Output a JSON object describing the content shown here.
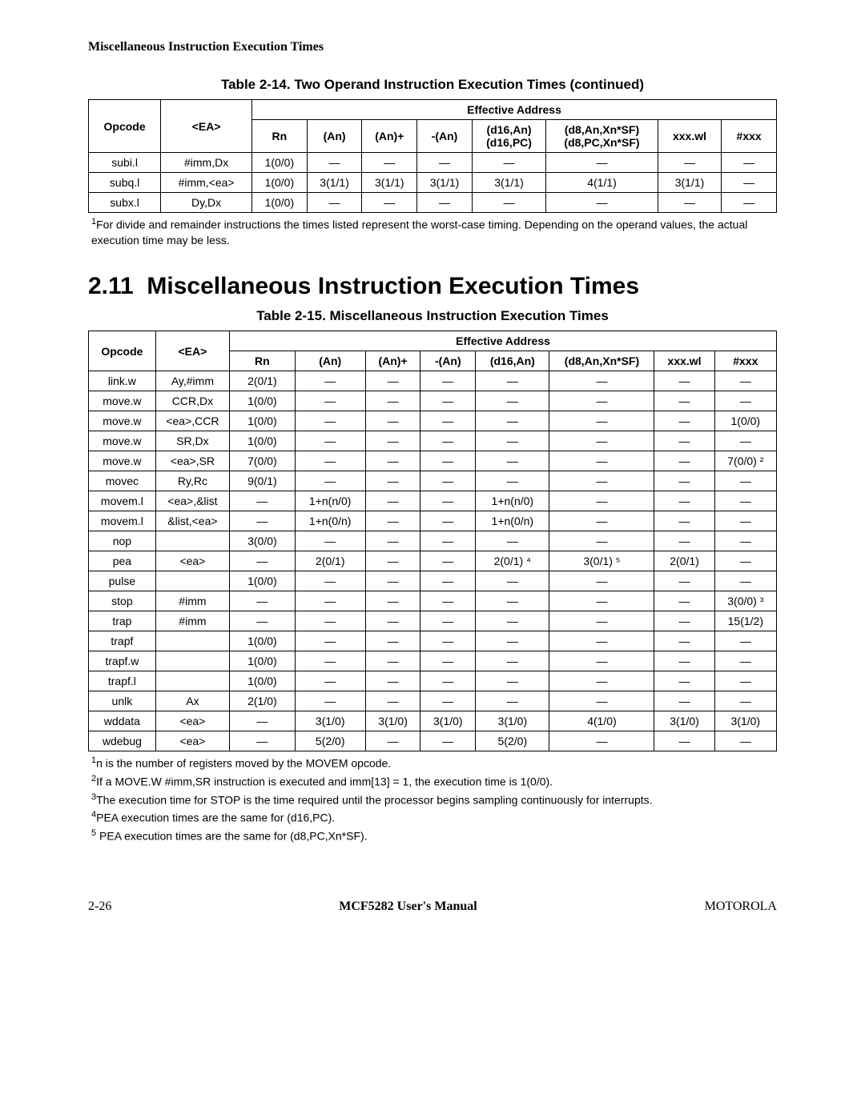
{
  "header": {
    "running_title": "Miscellaneous Instruction Execution Times"
  },
  "section": {
    "number": "2.11",
    "title": "Miscellaneous Instruction Execution Times"
  },
  "table14": {
    "caption": "Table 2-14. Two Operand Instruction Execution Times (continued)",
    "group_header": "Effective Address",
    "col_headers": [
      "Opcode",
      "<EA>",
      "Rn",
      "(An)",
      "(An)+",
      "-(An)",
      "(d16,An)\n(d16,PC)",
      "(d8,An,Xn*SF)\n(d8,PC,Xn*SF)",
      "xxx.wl",
      "#xxx"
    ],
    "rows": [
      [
        "subi.l",
        "#imm,Dx",
        "1(0/0)",
        "—",
        "—",
        "—",
        "—",
        "—",
        "—",
        "—"
      ],
      [
        "subq.l",
        "#imm,<ea>",
        "1(0/0)",
        "3(1/1)",
        "3(1/1)",
        "3(1/1)",
        "3(1/1)",
        "4(1/1)",
        "3(1/1)",
        "—"
      ],
      [
        "subx.l",
        "Dy,Dx",
        "1(0/0)",
        "—",
        "—",
        "—",
        "—",
        "—",
        "—",
        "—"
      ]
    ],
    "footnotes": [
      {
        "ref": "1",
        "text": "For divide and remainder instructions the times listed represent the worst-case timing. Depending on the operand values, the actual execution time may be less."
      }
    ]
  },
  "table15": {
    "caption": "Table 2-15. Miscellaneous Instruction Execution Times",
    "group_header": "Effective Address",
    "col_headers": [
      "Opcode",
      "<EA>",
      "Rn",
      "(An)",
      "(An)+",
      "-(An)",
      "(d16,An)",
      "(d8,An,Xn*SF)",
      "xxx.wl",
      "#xxx"
    ],
    "rows": [
      [
        "link.w",
        "Ay,#imm",
        "2(0/1)",
        "—",
        "—",
        "—",
        "—",
        "—",
        "—",
        "—"
      ],
      [
        "move.w",
        "CCR,Dx",
        "1(0/0)",
        "—",
        "—",
        "—",
        "—",
        "—",
        "—",
        "—"
      ],
      [
        "move.w",
        "<ea>,CCR",
        "1(0/0)",
        "—",
        "—",
        "—",
        "—",
        "—",
        "—",
        "1(0/0)"
      ],
      [
        "move.w",
        "SR,Dx",
        "1(0/0)",
        "—",
        "—",
        "—",
        "—",
        "—",
        "—",
        "—"
      ],
      [
        "move.w",
        "<ea>,SR",
        "7(0/0)",
        "—",
        "—",
        "—",
        "—",
        "—",
        "—",
        "7(0/0) ²"
      ],
      [
        "movec",
        "Ry,Rc",
        "9(0/1)",
        "—",
        "—",
        "—",
        "—",
        "—",
        "—",
        "—"
      ],
      [
        "movem.l",
        "<ea>,&list",
        "—",
        "1+n(n/0)",
        "—",
        "—",
        "1+n(n/0)",
        "—",
        "—",
        "—"
      ],
      [
        "movem.l",
        "&list,<ea>",
        "—",
        "1+n(0/n)",
        "—",
        "—",
        "1+n(0/n)",
        "—",
        "—",
        "—"
      ],
      [
        "nop",
        "",
        "3(0/0)",
        "—",
        "—",
        "—",
        "—",
        "—",
        "—",
        "—"
      ],
      [
        "pea",
        "<ea>",
        "—",
        "2(0/1)",
        "—",
        "—",
        "2(0/1) ⁴",
        "3(0/1) ⁵",
        "2(0/1)",
        "—"
      ],
      [
        "pulse",
        "",
        "1(0/0)",
        "—",
        "—",
        "—",
        "—",
        "—",
        "—",
        "—"
      ],
      [
        "stop",
        "#imm",
        "—",
        "—",
        "—",
        "—",
        "—",
        "—",
        "—",
        "3(0/0) ³"
      ],
      [
        "trap",
        "#imm",
        "—",
        "—",
        "—",
        "—",
        "—",
        "—",
        "—",
        "15(1/2)"
      ],
      [
        "trapf",
        "",
        "1(0/0)",
        "—",
        "—",
        "—",
        "—",
        "—",
        "—",
        "—"
      ],
      [
        "trapf.w",
        "",
        "1(0/0)",
        "—",
        "—",
        "—",
        "—",
        "—",
        "—",
        "—"
      ],
      [
        "trapf.l",
        "",
        "1(0/0)",
        "—",
        "—",
        "—",
        "—",
        "—",
        "—",
        "—"
      ],
      [
        "unlk",
        "Ax",
        "2(1/0)",
        "—",
        "—",
        "—",
        "—",
        "—",
        "—",
        "—"
      ],
      [
        "wddata",
        "<ea>",
        "—",
        "3(1/0)",
        "3(1/0)",
        "3(1/0)",
        "3(1/0)",
        "4(1/0)",
        "3(1/0)",
        "3(1/0)"
      ],
      [
        "wdebug",
        "<ea>",
        "—",
        "5(2/0)",
        "—",
        "—",
        "5(2/0)",
        "—",
        "—",
        "—"
      ]
    ],
    "footnotes": [
      {
        "ref": "1",
        "text": "n is the number of registers moved by the MOVEM opcode."
      },
      {
        "ref": "2",
        "text": "If a MOVE.W #imm,SR instruction is executed and imm[13] = 1, the execution time is 1(0/0)."
      },
      {
        "ref": "3",
        "text": "The execution time for STOP is the time required until the processor begins sampling continuously for interrupts."
      },
      {
        "ref": "4",
        "text": "PEA execution times are the same for (d16,PC)."
      },
      {
        "ref": "5",
        "text": " PEA execution times are the same for (d8,PC,Xn*SF)."
      }
    ]
  },
  "footer": {
    "left": "2-26",
    "center": "MCF5282 User's Manual",
    "right": "MOTOROLA"
  },
  "colors": {
    "text": "#000000",
    "background": "#ffffff",
    "border": "#000000"
  },
  "typography": {
    "body_font": "Times New Roman",
    "table_font": "Arial",
    "heading_font": "Arial",
    "caption_fontsize": 17,
    "table_fontsize": 14,
    "section_heading_fontsize": 30
  }
}
